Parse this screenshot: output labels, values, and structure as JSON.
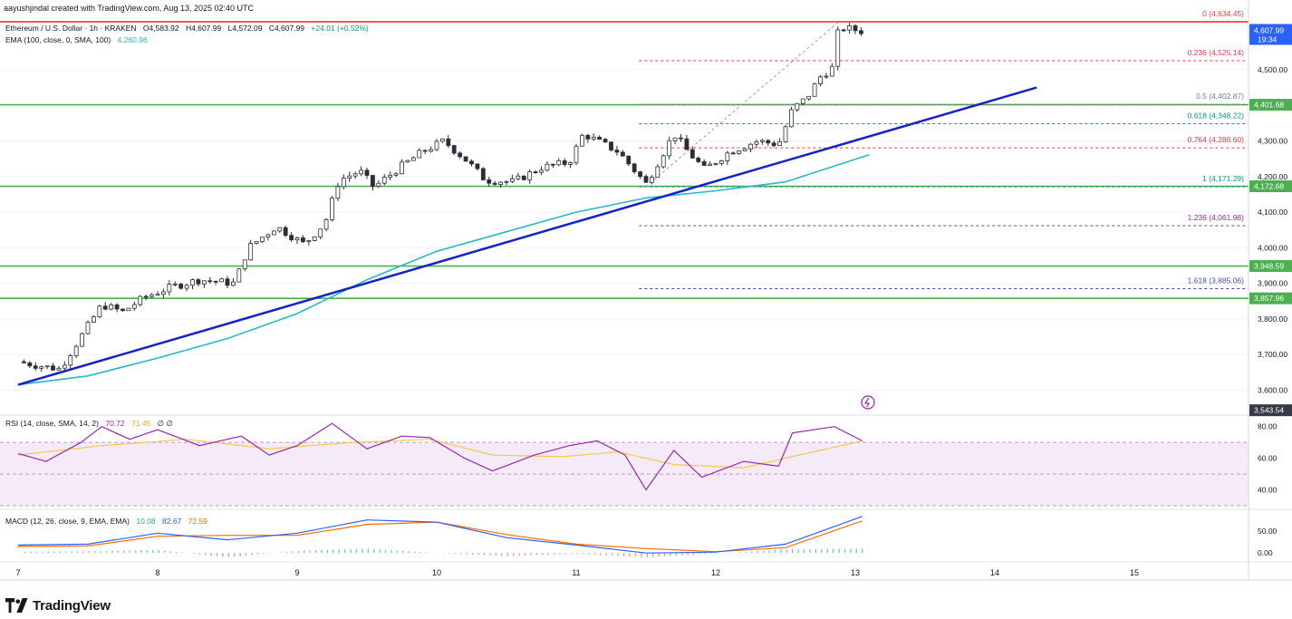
{
  "header": "aayushjindal created with TradingView.com, Aug 13, 2025 02:40 UTC",
  "symbol_line": {
    "title": "Ethereum / U.S. Dollar · 1h · KRAKEN",
    "open": "O4,583.92",
    "high": "H4,607.99",
    "low": "L4,572.09",
    "close": "C4,607.99",
    "change": "+24.01 (+0.52%)"
  },
  "ema_legend": {
    "label": "EMA (100, close, 0, SMA, 100)",
    "value": "4,260.96"
  },
  "rsi_legend": {
    "label": "RSI (14, close, SMA, 14, 2)",
    "value": "70.72",
    "value2": "71.45",
    "extra": "∅ ∅"
  },
  "macd_legend": {
    "label": "MACD (12, 26, close, 9, EMA, EMA)",
    "hist": "10.08",
    "macd": "82.67",
    "signal": "72.59"
  },
  "price_axis": {
    "currency": "USD",
    "ticks": [
      "4,500.00",
      "4,300.00",
      "4,200.00",
      "4,100.00",
      "4,000.00",
      "3,900.00",
      "3,800.00",
      "3,700.00",
      "3,600.00"
    ],
    "current_price": "4,607.99",
    "countdown": "19:34",
    "level_labels": [
      "4,401.68",
      "4,172.68",
      "3,948.59",
      "3,857.96",
      "3,543.54"
    ]
  },
  "rsi_axis": {
    "ticks": [
      "80.00",
      "60.00",
      "40.00"
    ]
  },
  "macd_axis": {
    "ticks": [
      "50.00",
      "0.00"
    ]
  },
  "time_axis": {
    "labels": [
      "7",
      "8",
      "9",
      "10",
      "11",
      "12",
      "13",
      "14",
      "15"
    ]
  },
  "footer_logo": "TradingView",
  "colors": {
    "up": "#089981",
    "down": "#f23645",
    "candle": "#2a2e39",
    "support": "#4caf50",
    "trendline": "#1422c8",
    "ema": "#26b8c8",
    "fib_red": "#f23645",
    "fib_teal": "#089981",
    "fib_purple": "#9c27b0",
    "fib_blue": "#3f51b5",
    "rsi": "#9c27b0",
    "rsi_ma": "#f5c84c",
    "macd": "#2962ff",
    "signal": "#ff6d00"
  },
  "chart_data": {
    "type": "candlestick",
    "title": "Ethereum / U.S. Dollar · 1h · KRAKEN",
    "ylabel": "USD",
    "ylim": [
      3530,
      4650
    ],
    "x_ticks": [
      "7",
      "8",
      "9",
      "10",
      "11",
      "12",
      "13",
      "14",
      "15"
    ],
    "price_close_path": [
      {
        "day": 7.0,
        "price": 3680
      },
      {
        "day": 7.2,
        "price": 3665
      },
      {
        "day": 7.3,
        "price": 3660
      },
      {
        "day": 7.5,
        "price": 3780
      },
      {
        "day": 7.6,
        "price": 3840
      },
      {
        "day": 7.75,
        "price": 3820
      },
      {
        "day": 7.9,
        "price": 3860
      },
      {
        "day": 8.1,
        "price": 3890
      },
      {
        "day": 8.3,
        "price": 3910
      },
      {
        "day": 8.55,
        "price": 3900
      },
      {
        "day": 8.65,
        "price": 4000
      },
      {
        "day": 8.85,
        "price": 4060
      },
      {
        "day": 9.05,
        "price": 4010
      },
      {
        "day": 9.2,
        "price": 4070
      },
      {
        "day": 9.3,
        "price": 4190
      },
      {
        "day": 9.45,
        "price": 4215
      },
      {
        "day": 9.55,
        "price": 4170
      },
      {
        "day": 9.75,
        "price": 4230
      },
      {
        "day": 9.9,
        "price": 4270
      },
      {
        "day": 10.05,
        "price": 4300
      },
      {
        "day": 10.2,
        "price": 4250
      },
      {
        "day": 10.35,
        "price": 4190
      },
      {
        "day": 10.55,
        "price": 4185
      },
      {
        "day": 10.75,
        "price": 4225
      },
      {
        "day": 10.95,
        "price": 4240
      },
      {
        "day": 11.05,
        "price": 4320
      },
      {
        "day": 11.3,
        "price": 4270
      },
      {
        "day": 11.5,
        "price": 4180
      },
      {
        "day": 11.6,
        "price": 4250
      },
      {
        "day": 11.7,
        "price": 4320
      },
      {
        "day": 11.8,
        "price": 4270
      },
      {
        "day": 11.92,
        "price": 4220
      },
      {
        "day": 12.1,
        "price": 4270
      },
      {
        "day": 12.3,
        "price": 4300
      },
      {
        "day": 12.45,
        "price": 4290
      },
      {
        "day": 12.55,
        "price": 4390
      },
      {
        "day": 12.65,
        "price": 4420
      },
      {
        "day": 12.75,
        "price": 4480
      },
      {
        "day": 12.85,
        "price": 4510
      },
      {
        "day": 12.88,
        "price": 4620
      },
      {
        "day": 13.05,
        "price": 4608
      }
    ],
    "ema100_path": [
      {
        "day": 7.0,
        "price": 3615
      },
      {
        "day": 7.5,
        "price": 3640
      },
      {
        "day": 8.0,
        "price": 3690
      },
      {
        "day": 8.5,
        "price": 3745
      },
      {
        "day": 9.0,
        "price": 3815
      },
      {
        "day": 9.5,
        "price": 3910
      },
      {
        "day": 10.0,
        "price": 3990
      },
      {
        "day": 10.5,
        "price": 4045
      },
      {
        "day": 11.0,
        "price": 4100
      },
      {
        "day": 11.5,
        "price": 4140
      },
      {
        "day": 12.0,
        "price": 4160
      },
      {
        "day": 12.5,
        "price": 4185
      },
      {
        "day": 13.1,
        "price": 4261
      }
    ],
    "trendline": {
      "start": {
        "day": 7.0,
        "price": 3615
      },
      "end": {
        "day": 14.3,
        "price": 4450
      }
    },
    "horizontal_levels": [
      4634.45,
      4401.68,
      4172.68,
      3948.59,
      3857.96
    ],
    "fib_levels": [
      {
        "ratio": "0",
        "price": 4634.45,
        "label": "0 (4,634.45)"
      },
      {
        "ratio": "0.236",
        "price": 4525.14,
        "label": "0.236 (4,525.14)"
      },
      {
        "ratio": "0.5",
        "price": 4402.87,
        "label": "0.5 (4,402.87)"
      },
      {
        "ratio": "0.618",
        "price": 4348.22,
        "label": "0.618 (4,348.22)"
      },
      {
        "ratio": "0.764",
        "price": 4280.6,
        "label": "0.764 (4,280.60)"
      },
      {
        "ratio": "1",
        "price": 4171.29,
        "label": "1 (4,171.29)"
      },
      {
        "ratio": "1.236",
        "price": 4061.98,
        "label": "1.236 (4,061.98)"
      },
      {
        "ratio": "1.618",
        "price": 3885.06,
        "label": "1.618 (3,885.06)"
      }
    ],
    "rsi": {
      "ylim": [
        30,
        85
      ],
      "band": [
        30,
        70
      ],
      "path": [
        {
          "day": 7.0,
          "v": 63
        },
        {
          "day": 7.2,
          "v": 58
        },
        {
          "day": 7.45,
          "v": 70
        },
        {
          "day": 7.6,
          "v": 80
        },
        {
          "day": 7.8,
          "v": 72
        },
        {
          "day": 8.0,
          "v": 78
        },
        {
          "day": 8.3,
          "v": 68
        },
        {
          "day": 8.6,
          "v": 74
        },
        {
          "day": 8.8,
          "v": 62
        },
        {
          "day": 9.0,
          "v": 68
        },
        {
          "day": 9.25,
          "v": 82
        },
        {
          "day": 9.5,
          "v": 66
        },
        {
          "day": 9.75,
          "v": 74
        },
        {
          "day": 9.95,
          "v": 73
        },
        {
          "day": 10.2,
          "v": 60
        },
        {
          "day": 10.4,
          "v": 52
        },
        {
          "day": 10.7,
          "v": 62
        },
        {
          "day": 10.95,
          "v": 68
        },
        {
          "day": 11.15,
          "v": 71
        },
        {
          "day": 11.35,
          "v": 62
        },
        {
          "day": 11.5,
          "v": 40
        },
        {
          "day": 11.7,
          "v": 65
        },
        {
          "day": 11.9,
          "v": 48
        },
        {
          "day": 12.2,
          "v": 58
        },
        {
          "day": 12.45,
          "v": 55
        },
        {
          "day": 12.55,
          "v": 76
        },
        {
          "day": 12.85,
          "v": 80
        },
        {
          "day": 13.05,
          "v": 71
        }
      ],
      "ma_path": [
        {
          "day": 7.0,
          "v": 62
        },
        {
          "day": 7.6,
          "v": 68
        },
        {
          "day": 8.2,
          "v": 72
        },
        {
          "day": 8.8,
          "v": 66
        },
        {
          "day": 9.4,
          "v": 70
        },
        {
          "day": 9.95,
          "v": 72
        },
        {
          "day": 10.4,
          "v": 62
        },
        {
          "day": 10.9,
          "v": 61
        },
        {
          "day": 11.3,
          "v": 64
        },
        {
          "day": 11.7,
          "v": 56
        },
        {
          "day": 12.2,
          "v": 54
        },
        {
          "day": 12.6,
          "v": 62
        },
        {
          "day": 13.05,
          "v": 71
        }
      ]
    },
    "macd": {
      "ylim": [
        -12,
        95
      ],
      "macd_path": [
        {
          "day": 7.0,
          "v": 18
        },
        {
          "day": 7.5,
          "v": 20
        },
        {
          "day": 8.0,
          "v": 45
        },
        {
          "day": 8.5,
          "v": 30
        },
        {
          "day": 9.0,
          "v": 45
        },
        {
          "day": 9.5,
          "v": 75
        },
        {
          "day": 10.0,
          "v": 70
        },
        {
          "day": 10.5,
          "v": 35
        },
        {
          "day": 11.0,
          "v": 18
        },
        {
          "day": 11.5,
          "v": 0
        },
        {
          "day": 12.0,
          "v": 2
        },
        {
          "day": 12.5,
          "v": 20
        },
        {
          "day": 13.05,
          "v": 83
        }
      ],
      "signal_path": [
        {
          "day": 7.0,
          "v": 15
        },
        {
          "day": 7.5,
          "v": 16
        },
        {
          "day": 8.0,
          "v": 38
        },
        {
          "day": 8.5,
          "v": 40
        },
        {
          "day": 9.0,
          "v": 40
        },
        {
          "day": 9.5,
          "v": 65
        },
        {
          "day": 10.0,
          "v": 70
        },
        {
          "day": 10.5,
          "v": 42
        },
        {
          "day": 11.0,
          "v": 20
        },
        {
          "day": 11.5,
          "v": 10
        },
        {
          "day": 12.0,
          "v": 3
        },
        {
          "day": 12.5,
          "v": 12
        },
        {
          "day": 13.05,
          "v": 73
        }
      ]
    }
  }
}
